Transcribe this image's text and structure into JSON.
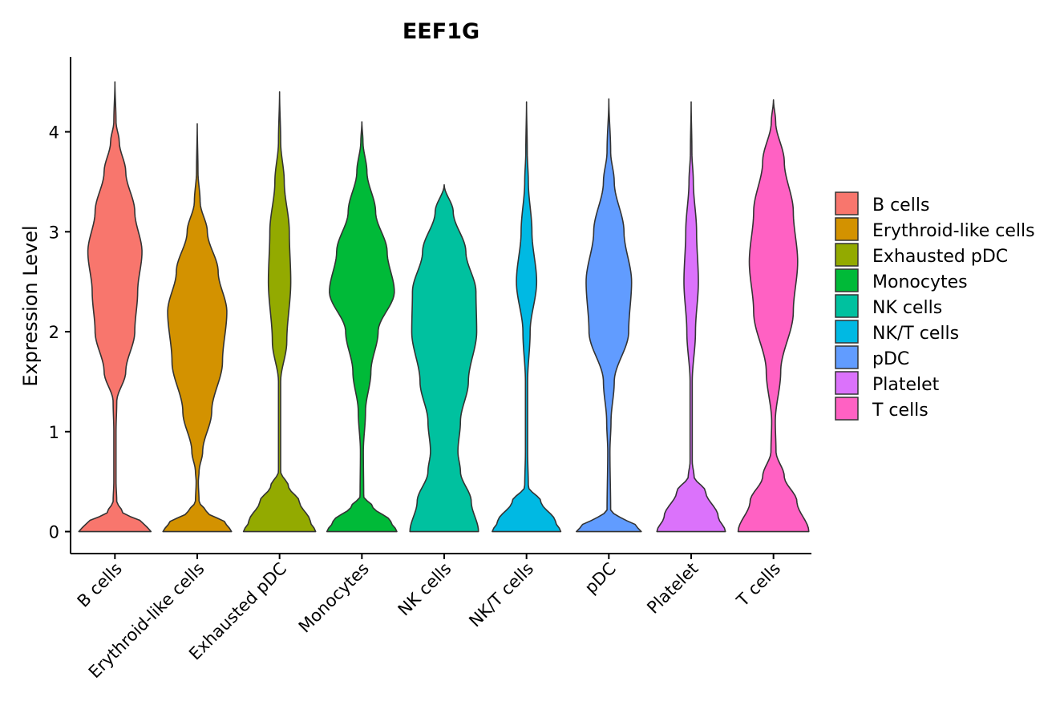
{
  "chart_data": {
    "type": "violin",
    "title": "EEF1G",
    "xlabel": "",
    "ylabel": "Expression Level",
    "ylim": [
      -0.22,
      4.75
    ],
    "yticks": [
      0,
      1,
      2,
      3,
      4
    ],
    "legend_position": "right",
    "categories": [
      "B cells",
      "Erythroid-like cells",
      "Exhausted pDC",
      "Monocytes",
      "NK cells",
      "NK/T cells",
      "pDC",
      "Platelet",
      "T cells"
    ],
    "colors": [
      "#F8766D",
      "#D39200",
      "#93AA00",
      "#00BA38",
      "#00C19F",
      "#00B9E3",
      "#619CFF",
      "#DB72FB",
      "#FF61C3"
    ],
    "series": [
      {
        "name": "B cells",
        "max": 4.5,
        "profile": [
          [
            0,
            1.0
          ],
          [
            0.08,
            0.8
          ],
          [
            0.2,
            0.2
          ],
          [
            0.3,
            0.05
          ],
          [
            0.5,
            0.03
          ],
          [
            1.0,
            0.03
          ],
          [
            1.3,
            0.05
          ],
          [
            1.6,
            0.3
          ],
          [
            2.0,
            0.55
          ],
          [
            2.4,
            0.63
          ],
          [
            2.8,
            0.75
          ],
          [
            3.2,
            0.55
          ],
          [
            3.6,
            0.3
          ],
          [
            3.9,
            0.12
          ],
          [
            4.1,
            0.03
          ],
          [
            4.5,
            0.0
          ]
        ]
      },
      {
        "name": "Erythroid-like cells",
        "max": 4.08,
        "profile": [
          [
            0,
            0.95
          ],
          [
            0.08,
            0.8
          ],
          [
            0.2,
            0.25
          ],
          [
            0.3,
            0.05
          ],
          [
            0.5,
            0.03
          ],
          [
            0.6,
            0.05
          ],
          [
            0.8,
            0.15
          ],
          [
            1.2,
            0.4
          ],
          [
            1.7,
            0.7
          ],
          [
            2.2,
            0.82
          ],
          [
            2.6,
            0.58
          ],
          [
            3.0,
            0.28
          ],
          [
            3.3,
            0.08
          ],
          [
            3.6,
            0.02
          ],
          [
            4.08,
            0.0
          ]
        ]
      },
      {
        "name": "Exhausted pDC",
        "max": 4.4,
        "profile": [
          [
            0,
            1.0
          ],
          [
            0.1,
            0.85
          ],
          [
            0.3,
            0.55
          ],
          [
            0.45,
            0.25
          ],
          [
            0.6,
            0.03
          ],
          [
            1.5,
            0.03
          ],
          [
            1.9,
            0.2
          ],
          [
            2.5,
            0.31
          ],
          [
            3.0,
            0.27
          ],
          [
            3.5,
            0.13
          ],
          [
            3.9,
            0.03
          ],
          [
            4.4,
            0.0
          ]
        ]
      },
      {
        "name": "Monocytes",
        "max": 4.1,
        "profile": [
          [
            0,
            0.97
          ],
          [
            0.1,
            0.8
          ],
          [
            0.25,
            0.3
          ],
          [
            0.35,
            0.05
          ],
          [
            0.8,
            0.04
          ],
          [
            1.2,
            0.1
          ],
          [
            1.6,
            0.25
          ],
          [
            2.0,
            0.45
          ],
          [
            2.4,
            0.9
          ],
          [
            2.8,
            0.7
          ],
          [
            3.2,
            0.38
          ],
          [
            3.6,
            0.14
          ],
          [
            3.9,
            0.03
          ],
          [
            4.1,
            0.0
          ]
        ]
      },
      {
        "name": "NK cells",
        "max": 3.47,
        "profile": [
          [
            0,
            0.95
          ],
          [
            0.3,
            0.75
          ],
          [
            0.6,
            0.45
          ],
          [
            0.8,
            0.38
          ],
          [
            1.1,
            0.45
          ],
          [
            1.5,
            0.67
          ],
          [
            2.0,
            0.9
          ],
          [
            2.4,
            0.88
          ],
          [
            2.8,
            0.6
          ],
          [
            3.2,
            0.25
          ],
          [
            3.47,
            0.0
          ]
        ]
      },
      {
        "name": "NK/T cells",
        "max": 4.3,
        "profile": [
          [
            0,
            0.95
          ],
          [
            0.1,
            0.8
          ],
          [
            0.3,
            0.4
          ],
          [
            0.45,
            0.05
          ],
          [
            0.8,
            0.03
          ],
          [
            1.5,
            0.03
          ],
          [
            2.0,
            0.1
          ],
          [
            2.5,
            0.28
          ],
          [
            3.0,
            0.15
          ],
          [
            3.5,
            0.05
          ],
          [
            3.8,
            0.02
          ],
          [
            4.3,
            0.0
          ]
        ]
      },
      {
        "name": "pDC",
        "max": 4.33,
        "profile": [
          [
            0,
            0.9
          ],
          [
            0.06,
            0.75
          ],
          [
            0.15,
            0.3
          ],
          [
            0.2,
            0.05
          ],
          [
            0.8,
            0.03
          ],
          [
            1.1,
            0.06
          ],
          [
            1.5,
            0.15
          ],
          [
            2.0,
            0.55
          ],
          [
            2.5,
            0.63
          ],
          [
            3.0,
            0.42
          ],
          [
            3.5,
            0.15
          ],
          [
            3.8,
            0.05
          ],
          [
            4.33,
            0.0
          ]
        ]
      },
      {
        "name": "Platelet",
        "max": 4.3,
        "profile": [
          [
            0,
            0.95
          ],
          [
            0.15,
            0.75
          ],
          [
            0.4,
            0.4
          ],
          [
            0.55,
            0.08
          ],
          [
            0.7,
            0.03
          ],
          [
            1.5,
            0.03
          ],
          [
            2.0,
            0.12
          ],
          [
            2.5,
            0.2
          ],
          [
            3.0,
            0.15
          ],
          [
            3.5,
            0.06
          ],
          [
            3.8,
            0.02
          ],
          [
            4.3,
            0.0
          ]
        ]
      },
      {
        "name": "T cells",
        "max": 4.32,
        "profile": [
          [
            0,
            0.98
          ],
          [
            0.3,
            0.65
          ],
          [
            0.55,
            0.3
          ],
          [
            0.8,
            0.07
          ],
          [
            1.1,
            0.05
          ],
          [
            1.6,
            0.2
          ],
          [
            2.2,
            0.55
          ],
          [
            2.7,
            0.67
          ],
          [
            3.2,
            0.55
          ],
          [
            3.7,
            0.3
          ],
          [
            4.1,
            0.06
          ],
          [
            4.32,
            0.0
          ]
        ]
      }
    ]
  }
}
